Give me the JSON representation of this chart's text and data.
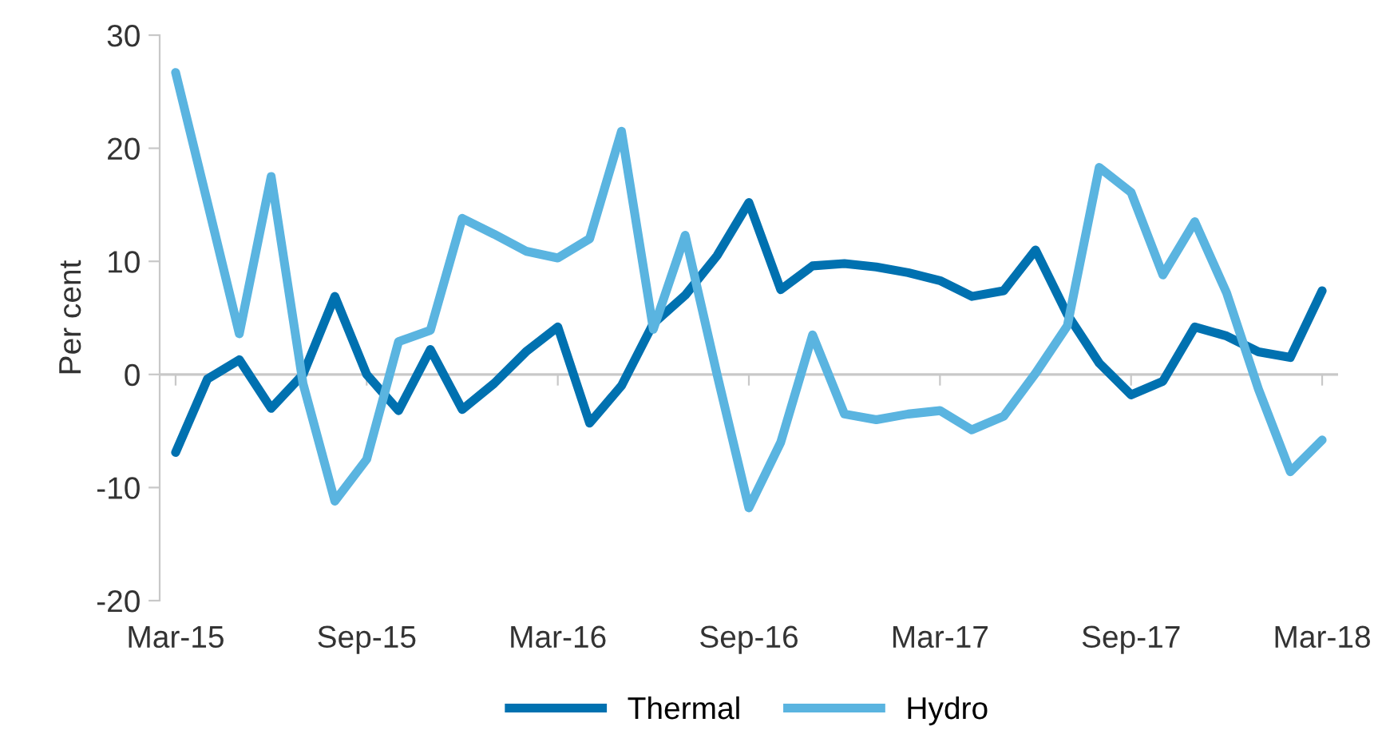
{
  "chart_data": {
    "type": "line",
    "ylabel": "Per cent",
    "categories": [
      "Mar-15",
      null,
      null,
      null,
      null,
      null,
      "Sep-15",
      null,
      null,
      null,
      null,
      null,
      "Mar-16",
      null,
      null,
      null,
      null,
      null,
      "Sep-16",
      null,
      null,
      null,
      null,
      null,
      "Mar-17",
      null,
      null,
      null,
      null,
      null,
      "Sep-17",
      null,
      null,
      null,
      null,
      null,
      "Mar-18"
    ],
    "series": [
      {
        "name": "Thermal",
        "color": "#0071b0",
        "values": [
          -6.9,
          -0.4,
          1.3,
          -3.0,
          0,
          6.9,
          0,
          -3.2,
          2.2,
          -3.1,
          -0.8,
          2,
          4.2,
          -4.3,
          -1,
          4.5,
          7,
          10.5,
          15.2,
          7.5,
          9.6,
          9.8,
          9.5,
          9,
          8.3,
          6.9,
          7.4,
          11,
          5.3,
          1,
          -1.8,
          -0.6,
          4.2,
          3.4,
          2,
          1.5,
          7.4
        ]
      },
      {
        "name": "Hydro",
        "color": "#5ab4e0",
        "values": [
          26.7,
          15.2,
          3.6,
          17.5,
          -0.8,
          -11.2,
          -7.5,
          2.9,
          3.9,
          13.8,
          12.4,
          10.9,
          10.3,
          12,
          21.5,
          4,
          12.3,
          0,
          -11.8,
          -6,
          3.5,
          -3.5,
          -4,
          -3.5,
          -3.2,
          -4.9,
          -3.7,
          0.1,
          4.3,
          18.3,
          16.1,
          8.8,
          13.5,
          7.2,
          -1.3,
          -8.6,
          -5.8
        ]
      }
    ],
    "ylim": [
      -20,
      30
    ],
    "yticks": [
      -20,
      -10,
      0,
      10,
      20,
      30
    ],
    "grid": false,
    "ref_lines": [
      {
        "axis": "y",
        "value": 0,
        "color": "#c8c8c8"
      }
    ],
    "legend": "bottom",
    "line_style": "solid",
    "marker": "none"
  }
}
